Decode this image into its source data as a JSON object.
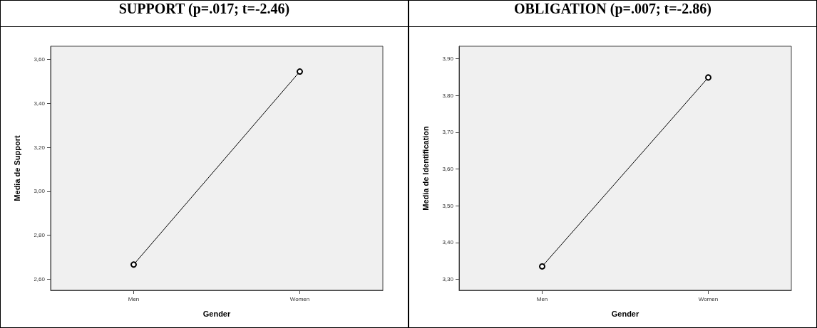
{
  "chart_data": [
    {
      "type": "line",
      "title": "SUPPORT (p=.017; t=-2.46)",
      "xlabel": "Gender",
      "ylabel": "Media de Support",
      "categories": [
        "Men",
        "Women"
      ],
      "series": [
        {
          "color": "#000000",
          "values": [
            2.667,
            3.545
          ]
        }
      ],
      "ylim": [
        2.55,
        3.66
      ],
      "yticks": [
        {
          "value": 2.6,
          "label": "2,60"
        },
        {
          "value": 2.8,
          "label": "2,80"
        },
        {
          "value": 3.0,
          "label": "3,00"
        },
        {
          "value": 3.2,
          "label": "3,20"
        },
        {
          "value": 3.4,
          "label": "3,40"
        },
        {
          "value": 3.6,
          "label": "3,60"
        }
      ],
      "grid": false,
      "marker": "circle",
      "line_style": "solid"
    },
    {
      "type": "line",
      "title": "OBLIGATION (p=.007; t=-2.86)",
      "xlabel": "Gender",
      "ylabel": "Media de Identification",
      "categories": [
        "Men",
        "Women"
      ],
      "series": [
        {
          "color": "#000000",
          "values": [
            3.335,
            3.849
          ]
        }
      ],
      "ylim": [
        3.27,
        3.934
      ],
      "yticks": [
        {
          "value": 3.3,
          "label": "3,30"
        },
        {
          "value": 3.4,
          "label": "3,40"
        },
        {
          "value": 3.5,
          "label": "3,50"
        },
        {
          "value": 3.6,
          "label": "3,60"
        },
        {
          "value": 3.7,
          "label": "3,70"
        },
        {
          "value": 3.8,
          "label": "3,80"
        },
        {
          "value": 3.9,
          "label": "3,90"
        }
      ],
      "grid": false,
      "marker": "circle",
      "line_style": "solid"
    }
  ]
}
